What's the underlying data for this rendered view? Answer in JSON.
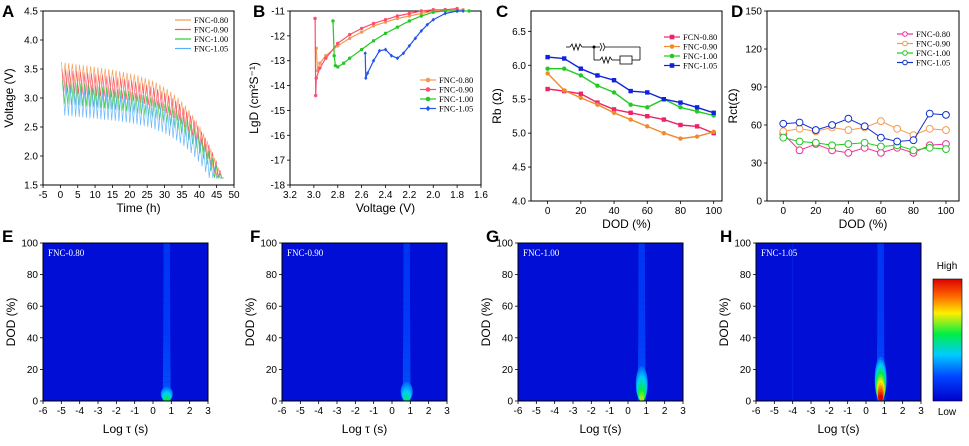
{
  "chart_data": [
    {
      "panel": "A",
      "type": "line",
      "xlabel": "Time (h)",
      "ylabel": "Voltage (V)",
      "xlim": [
        -5,
        50
      ],
      "ylim": [
        1.5,
        4.5
      ],
      "xticks": [
        "-5",
        "0",
        "5",
        "10",
        "15",
        "20",
        "25",
        "30",
        "35",
        "40",
        "45",
        "50"
      ],
      "xtick_values": [
        -5,
        0,
        5,
        10,
        15,
        20,
        25,
        30,
        35,
        40,
        45,
        50
      ],
      "yticks": [
        "1.5",
        "2.0",
        "2.5",
        "3.0",
        "3.5",
        "4.0",
        "4.5"
      ],
      "ytick_values": [
        1.5,
        2.0,
        2.5,
        3.0,
        3.5,
        4.0,
        4.5
      ],
      "legend_position": "top-right",
      "series": [
        {
          "name": "FNC-0.80",
          "color": "#f39a52",
          "center": 3.45,
          "amplitude": 0.17,
          "drop": 1.6,
          "end_time": 46.5
        },
        {
          "name": "FNC-0.90",
          "color": "#ff4d6d",
          "center": 3.3,
          "amplitude": 0.2,
          "drop": 1.5,
          "end_time": 47
        },
        {
          "name": "FNC-1.00",
          "color": "#2fc93a",
          "center": 3.1,
          "amplitude": 0.2,
          "drop": 1.35,
          "end_time": 47
        },
        {
          "name": "FNC-1.05",
          "color": "#5ab0ff",
          "center": 2.95,
          "amplitude": 0.25,
          "drop": 1.25,
          "end_time": 46.5
        }
      ]
    },
    {
      "panel": "B",
      "type": "line",
      "xlabel": "Voltage (V)",
      "ylabel": "LgD (cm²S⁻¹)",
      "xlim": [
        3.2,
        1.6
      ],
      "ylim": [
        -18,
        -11
      ],
      "xticks": [
        "3.2",
        "3.0",
        "2.8",
        "2.6",
        "2.4",
        "2.2",
        "2.0",
        "1.8",
        "1.6"
      ],
      "xtick_values": [
        3.2,
        3.0,
        2.8,
        2.6,
        2.4,
        2.2,
        2.0,
        1.8,
        1.6
      ],
      "yticks": [
        "-18",
        "-17",
        "-16",
        "-15",
        "-14",
        "-13",
        "-12",
        "-11"
      ],
      "ytick_values": [
        -18,
        -17,
        -16,
        -15,
        -14,
        -13,
        -12,
        -11
      ],
      "legend_position": "bottom-right",
      "series": [
        {
          "name": "FNC-0.80",
          "color": "#f39a52",
          "marker": "circle",
          "x": [
            2.98,
            2.97,
            2.95,
            2.9,
            2.8,
            2.7,
            2.6,
            2.5,
            2.4,
            2.3,
            2.2,
            2.1,
            2.0,
            1.9,
            1.8,
            1.75
          ],
          "y": [
            -12.5,
            -13.4,
            -13.1,
            -12.8,
            -12.4,
            -12.1,
            -11.85,
            -11.6,
            -11.45,
            -11.3,
            -11.2,
            -11.1,
            -11.0,
            -10.95,
            -10.95,
            -10.95
          ]
        },
        {
          "name": "FNC-0.90",
          "color": "#ff4d6d",
          "marker": "circle",
          "x": [
            2.99,
            2.985,
            2.98,
            2.95,
            2.9,
            2.8,
            2.7,
            2.6,
            2.5,
            2.4,
            2.3,
            2.2,
            2.1,
            2.0,
            1.9,
            1.8
          ],
          "y": [
            -11.3,
            -14.4,
            -13.7,
            -13.3,
            -12.9,
            -12.3,
            -11.95,
            -11.7,
            -11.5,
            -11.35,
            -11.2,
            -11.1,
            -11.0,
            -10.95,
            -10.95,
            -10.9
          ]
        },
        {
          "name": "FNC-1.00",
          "color": "#22c922",
          "marker": "circle",
          "x": [
            2.84,
            2.83,
            2.82,
            2.8,
            2.75,
            2.7,
            2.6,
            2.5,
            2.4,
            2.3,
            2.2,
            2.1,
            2.0,
            1.9,
            1.8,
            1.7
          ],
          "y": [
            -11.4,
            -12.8,
            -13.2,
            -13.25,
            -13.1,
            -12.9,
            -12.55,
            -12.2,
            -11.9,
            -11.65,
            -11.4,
            -11.2,
            -11.05,
            -11.0,
            -11.0,
            -11.0
          ]
        },
        {
          "name": "FNC-1.05",
          "color": "#2255ee",
          "marker": "diamond",
          "x": [
            2.57,
            2.565,
            2.55,
            2.5,
            2.45,
            2.4,
            2.35,
            2.3,
            2.25,
            2.2,
            2.15,
            2.1,
            2.05,
            2.0,
            1.9,
            1.8,
            1.75
          ],
          "y": [
            -12.7,
            -13.7,
            -13.5,
            -13.0,
            -12.6,
            -12.55,
            -12.8,
            -12.9,
            -12.7,
            -12.4,
            -12.1,
            -11.8,
            -11.55,
            -11.35,
            -11.1,
            -11.0,
            -11.0
          ]
        }
      ]
    },
    {
      "panel": "C",
      "type": "line",
      "xlabel": "DOD (%)",
      "ylabel": "Rb (Ω)",
      "xlim": [
        -10,
        105
      ],
      "ylim": [
        4.0,
        6.8
      ],
      "xticks": [
        "0",
        "20",
        "40",
        "60",
        "80",
        "100"
      ],
      "xtick_values": [
        0,
        20,
        40,
        60,
        80,
        100
      ],
      "yticks": [
        "4.0",
        "4.5",
        "5.0",
        "5.5",
        "6.0",
        "6.5"
      ],
      "ytick_values": [
        4.0,
        4.5,
        5.0,
        5.5,
        6.0,
        6.5
      ],
      "legend_position": "top-right",
      "inset": "equivalent circuit (R1 – CPE1 / R2 – W1)",
      "x": [
        0,
        10,
        20,
        30,
        40,
        50,
        60,
        70,
        80,
        90,
        100
      ],
      "series": [
        {
          "name": "FCN-0.80",
          "color": "#ee2266",
          "marker": "square",
          "values": [
            5.65,
            5.62,
            5.58,
            5.45,
            5.35,
            5.3,
            5.25,
            5.2,
            5.12,
            5.1,
            5.0
          ]
        },
        {
          "name": "FNC-0.90",
          "color": "#f08a2a",
          "marker": "circle",
          "values": [
            5.88,
            5.63,
            5.52,
            5.42,
            5.3,
            5.2,
            5.1,
            5.0,
            4.92,
            4.95,
            5.02
          ]
        },
        {
          "name": "FNC-1.00",
          "color": "#22c922",
          "marker": "circle",
          "values": [
            5.95,
            5.95,
            5.85,
            5.7,
            5.6,
            5.42,
            5.38,
            5.5,
            5.38,
            5.32,
            5.26
          ]
        },
        {
          "name": "FNC-1.05",
          "color": "#1122dd",
          "marker": "square",
          "values": [
            6.12,
            6.1,
            5.95,
            5.85,
            5.78,
            5.62,
            5.6,
            5.5,
            5.45,
            5.38,
            5.3
          ]
        }
      ]
    },
    {
      "panel": "D",
      "type": "line",
      "xlabel": "DOD (%)",
      "ylabel": "Rct(Ω)",
      "xlim": [
        -10,
        108
      ],
      "ylim": [
        0,
        150
      ],
      "xticks": [
        "0",
        "20",
        "40",
        "60",
        "80",
        "100"
      ],
      "xtick_values": [
        0,
        20,
        40,
        60,
        80,
        100
      ],
      "yticks": [
        "0",
        "30",
        "60",
        "90",
        "120",
        "150"
      ],
      "ytick_values": [
        0,
        30,
        60,
        90,
        120,
        150
      ],
      "legend_position": "top-right",
      "x": [
        0,
        10,
        20,
        30,
        40,
        50,
        60,
        70,
        80,
        90,
        100
      ],
      "series": [
        {
          "name": "FNC-0.80",
          "color": "#ee3399",
          "marker": "open-circle",
          "values": [
            53,
            40,
            45,
            40,
            38,
            42,
            38,
            42,
            38,
            44,
            45
          ]
        },
        {
          "name": "FNC-0.90",
          "color": "#f39a52",
          "marker": "open-circle",
          "values": [
            55,
            57,
            55,
            58,
            56,
            58,
            63,
            57,
            52,
            57,
            56
          ]
        },
        {
          "name": "FNC-1.00",
          "color": "#22c922",
          "marker": "open-circle",
          "values": [
            50,
            47,
            46,
            44,
            45,
            46,
            43,
            44,
            40,
            42,
            41
          ]
        },
        {
          "name": "FNC-1.05",
          "color": "#1133cc",
          "marker": "open-circle",
          "values": [
            61,
            62,
            56,
            60,
            65,
            59,
            50,
            47,
            48,
            69,
            68
          ]
        }
      ]
    },
    {
      "panel": "E",
      "type": "heatmap",
      "label": "FNC-0.80",
      "xlabel": "Log τ (s)",
      "ylabel": "DOD (%)",
      "xlim": [
        -6,
        3
      ],
      "ylim": [
        0,
        100
      ],
      "xticks": [
        "-6",
        "-5",
        "-4",
        "-3",
        "-2",
        "-1",
        "0",
        "1",
        "2",
        "3"
      ],
      "xtick_values": [
        -6,
        -5,
        -4,
        -3,
        -2,
        -1,
        0,
        1,
        2,
        3
      ],
      "yticks": [
        "0",
        "20",
        "40",
        "60",
        "80",
        "100"
      ],
      "ytick_values": [
        0,
        20,
        40,
        60,
        80,
        100
      ],
      "peak_log_tau": 0.75,
      "peak_intensity": 0.55,
      "peak_extent_dod": 9
    },
    {
      "panel": "F",
      "type": "heatmap",
      "label": "FNC-0.90",
      "xlabel": "Log τ (s)",
      "ylabel": "DOD (%)",
      "xlim": [
        -6,
        3
      ],
      "ylim": [
        0,
        100
      ],
      "xticks": [
        "-6",
        "-5",
        "-4",
        "-3",
        "-2",
        "-1",
        "0",
        "1",
        "2",
        "3"
      ],
      "xtick_values": [
        -6,
        -5,
        -4,
        -3,
        -2,
        -1,
        0,
        1,
        2,
        3
      ],
      "yticks": [
        "0",
        "20",
        "40",
        "60",
        "80",
        "100"
      ],
      "ytick_values": [
        0,
        20,
        40,
        60,
        80,
        100
      ],
      "peak_log_tau": 0.8,
      "peak_intensity": 0.5,
      "peak_extent_dod": 12
    },
    {
      "panel": "G",
      "type": "heatmap",
      "label": "FNC-1.00",
      "xlabel": "Log τ(s)",
      "ylabel": "DOD (%)",
      "xlim": [
        -6,
        3
      ],
      "ylim": [
        0,
        100
      ],
      "xticks": [
        "-6",
        "-5",
        "-4",
        "-3",
        "-2",
        "-1",
        "0",
        "1",
        "2",
        "3"
      ],
      "xtick_values": [
        -6,
        -5,
        -4,
        -3,
        -2,
        -1,
        0,
        1,
        2,
        3
      ],
      "yticks": [
        "0",
        "20",
        "40",
        "60",
        "80",
        "100"
      ],
      "ytick_values": [
        0,
        20,
        40,
        60,
        80,
        100
      ],
      "peak_log_tau": 0.75,
      "peak_intensity": 0.65,
      "peak_extent_dod": 22
    },
    {
      "panel": "H",
      "type": "heatmap",
      "label": "FNC-1.05",
      "xlabel": "Log τ(s)",
      "ylabel": "DOD (%)",
      "xlim": [
        -6,
        3
      ],
      "ylim": [
        0,
        100
      ],
      "xticks": [
        "-6",
        "-5",
        "-4",
        "-3",
        "-2",
        "-1",
        "0",
        "1",
        "2",
        "3"
      ],
      "xtick_values": [
        -6,
        -5,
        -4,
        -3,
        -2,
        -1,
        0,
        1,
        2,
        3
      ],
      "yticks": [
        "0",
        "20",
        "40",
        "60",
        "80",
        "100"
      ],
      "ytick_values": [
        0,
        20,
        40,
        60,
        80,
        100
      ],
      "peak_log_tau": 0.8,
      "peak_intensity": 1.0,
      "peak_extent_dod": 28
    }
  ],
  "colorbar": {
    "high_label": "High",
    "low_label": "Low"
  }
}
